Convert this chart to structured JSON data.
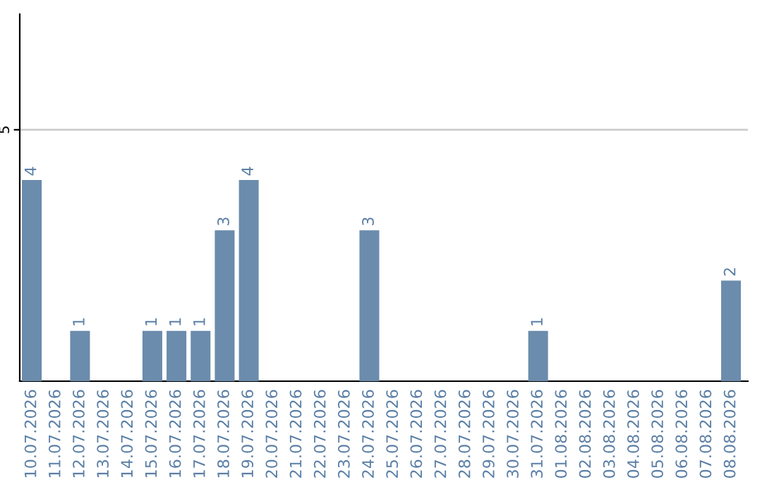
{
  "chart_data": {
    "type": "bar",
    "categories": [
      "10.07.2026",
      "11.07.2026",
      "12.07.2026",
      "13.07.2026",
      "14.07.2026",
      "15.07.2026",
      "16.07.2026",
      "17.07.2026",
      "18.07.2026",
      "19.07.2026",
      "20.07.2026",
      "21.07.2026",
      "22.07.2026",
      "23.07.2026",
      "24.07.2026",
      "25.07.2026",
      "26.07.2026",
      "27.07.2026",
      "28.07.2026",
      "29.07.2026",
      "30.07.2026",
      "31.07.2026",
      "01.08.2026",
      "02.08.2026",
      "03.08.2026",
      "04.08.2026",
      "05.08.2026",
      "06.08.2026",
      "07.08.2026",
      "08.08.2026"
    ],
    "values": [
      4,
      0,
      1,
      0,
      0,
      1,
      1,
      1,
      3,
      4,
      0,
      0,
      0,
      0,
      3,
      0,
      0,
      0,
      0,
      0,
      0,
      1,
      0,
      0,
      0,
      0,
      0,
      0,
      0,
      2
    ],
    "value_labels": [
      "4",
      null,
      "1",
      null,
      null,
      "1",
      "1",
      "1",
      "3",
      "4",
      null,
      null,
      null,
      null,
      "3",
      null,
      null,
      null,
      null,
      null,
      null,
      "1",
      null,
      null,
      null,
      null,
      null,
      null,
      null,
      "2"
    ],
    "color": "#6b8cac",
    "ylim": [
      0,
      7.3
    ],
    "yticks": [
      5
    ],
    "grid": "y"
  }
}
